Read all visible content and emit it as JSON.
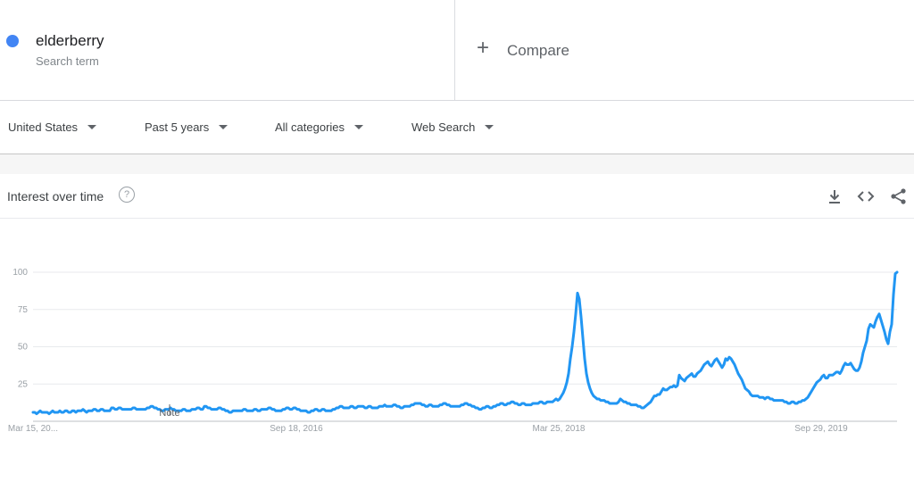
{
  "search_term": {
    "name": "elderberry",
    "sublabel": "Search term",
    "color": "#4285f4"
  },
  "compare": {
    "plus": "+",
    "label": "Compare"
  },
  "filters": [
    {
      "label": "United States"
    },
    {
      "label": "Past 5 years"
    },
    {
      "label": "All categories"
    },
    {
      "label": "Web Search"
    }
  ],
  "card": {
    "title": "Interest over time",
    "help": "?",
    "icons": [
      "download-icon",
      "embed-icon",
      "share-icon"
    ]
  },
  "chart_data": {
    "type": "line",
    "series": [
      {
        "color": "#2196f3",
        "values": [
          6,
          6,
          5,
          6,
          7,
          6,
          6,
          6,
          6,
          5,
          6,
          7,
          6,
          6,
          6,
          7,
          6,
          6,
          7,
          7,
          6,
          6,
          7,
          7,
          6,
          7,
          7,
          7,
          8,
          7,
          6,
          7,
          7,
          7,
          8,
          8,
          7,
          7,
          8,
          8,
          7,
          7,
          7,
          7,
          9,
          9,
          8,
          8,
          9,
          9,
          8,
          8,
          8,
          8,
          8,
          8,
          9,
          9,
          8,
          8,
          8,
          8,
          8,
          8,
          9,
          9,
          10,
          10,
          9,
          9,
          8,
          8,
          7,
          7,
          8,
          8,
          8,
          9,
          8,
          8,
          7,
          7,
          7,
          7,
          8,
          8,
          7,
          7,
          7,
          8,
          8,
          8,
          9,
          9,
          8,
          8,
          10,
          10,
          9,
          9,
          8,
          8,
          8,
          8,
          9,
          9,
          8,
          8,
          7,
          7,
          6,
          6,
          7,
          7,
          7,
          7,
          7,
          7,
          8,
          8,
          7,
          7,
          7,
          7,
          8,
          8,
          7,
          7,
          8,
          8,
          8,
          8,
          9,
          9,
          8,
          8,
          7,
          7,
          7,
          7,
          8,
          8,
          9,
          9,
          8,
          8,
          9,
          9,
          8,
          8,
          7,
          7,
          7,
          7,
          6,
          6,
          7,
          7,
          8,
          8,
          7,
          7,
          8,
          8,
          7,
          7,
          7,
          7,
          8,
          8,
          9,
          9,
          10,
          10,
          9,
          9,
          9,
          9,
          10,
          10,
          9,
          9,
          10,
          10,
          10,
          10,
          9,
          9,
          10,
          10,
          9,
          9,
          9,
          9,
          10,
          10,
          10,
          11,
          10,
          10,
          10,
          10,
          11,
          11,
          10,
          10,
          9,
          9,
          10,
          10,
          10,
          10,
          11,
          11,
          12,
          12,
          12,
          12,
          11,
          11,
          10,
          10,
          11,
          11,
          10,
          10,
          10,
          10,
          11,
          11,
          12,
          12,
          11,
          11,
          10,
          10,
          10,
          10,
          10,
          10,
          11,
          11,
          12,
          12,
          11,
          11,
          10,
          10,
          9,
          9,
          8,
          8,
          9,
          9,
          10,
          10,
          9,
          9,
          10,
          10,
          11,
          11,
          12,
          12,
          11,
          11,
          12,
          12,
          13,
          13,
          12,
          12,
          11,
          11,
          12,
          12,
          11,
          11,
          11,
          11,
          12,
          12,
          12,
          12,
          13,
          13,
          12,
          12,
          13,
          13,
          13,
          13,
          14,
          15,
          14,
          15,
          17,
          19,
          22,
          26,
          32,
          42,
          50,
          60,
          72,
          86,
          82,
          70,
          56,
          42,
          32,
          26,
          22,
          19,
          17,
          16,
          15,
          15,
          14,
          14,
          14,
          13,
          13,
          12,
          12,
          12,
          12,
          12,
          13,
          15,
          14,
          13,
          13,
          12,
          12,
          11,
          11,
          11,
          11,
          10,
          10,
          9,
          9,
          10,
          11,
          12,
          13,
          15,
          17,
          17,
          18,
          18,
          20,
          22,
          21,
          21,
          22,
          23,
          23,
          24,
          23,
          24,
          31,
          29,
          28,
          27,
          29,
          30,
          31,
          32,
          30,
          30,
          32,
          33,
          34,
          36,
          38,
          39,
          40,
          38,
          37,
          39,
          41,
          42,
          40,
          38,
          36,
          38,
          42,
          41,
          43,
          42,
          40,
          38,
          35,
          32,
          30,
          28,
          25,
          22,
          21,
          20,
          18,
          17,
          17,
          17,
          17,
          16,
          16,
          16,
          15,
          16,
          16,
          15,
          15,
          14,
          14,
          14,
          14,
          14,
          14,
          13,
          13,
          12,
          12,
          13,
          13,
          12,
          12,
          13,
          13,
          14,
          14,
          15,
          16,
          18,
          20,
          22,
          24,
          26,
          27,
          28,
          30,
          31,
          29,
          29,
          31,
          31,
          31,
          32,
          33,
          33,
          32,
          34,
          37,
          39,
          38,
          38,
          39,
          37,
          35,
          34,
          34,
          36,
          40,
          46,
          50,
          54,
          62,
          65,
          64,
          63,
          67,
          70,
          72,
          68,
          64,
          60,
          55,
          52,
          60,
          65,
          85,
          99,
          100
        ]
      }
    ],
    "y_ticks": [
      100,
      75,
      50,
      25
    ],
    "x_ticks": [
      "Mar 15, 20...",
      "Sep 18, 2016",
      "Mar 25, 2018",
      "Sep 29, 2019"
    ],
    "annotations": [
      "Note"
    ],
    "ylim": [
      0,
      100
    ],
    "grid": true
  }
}
